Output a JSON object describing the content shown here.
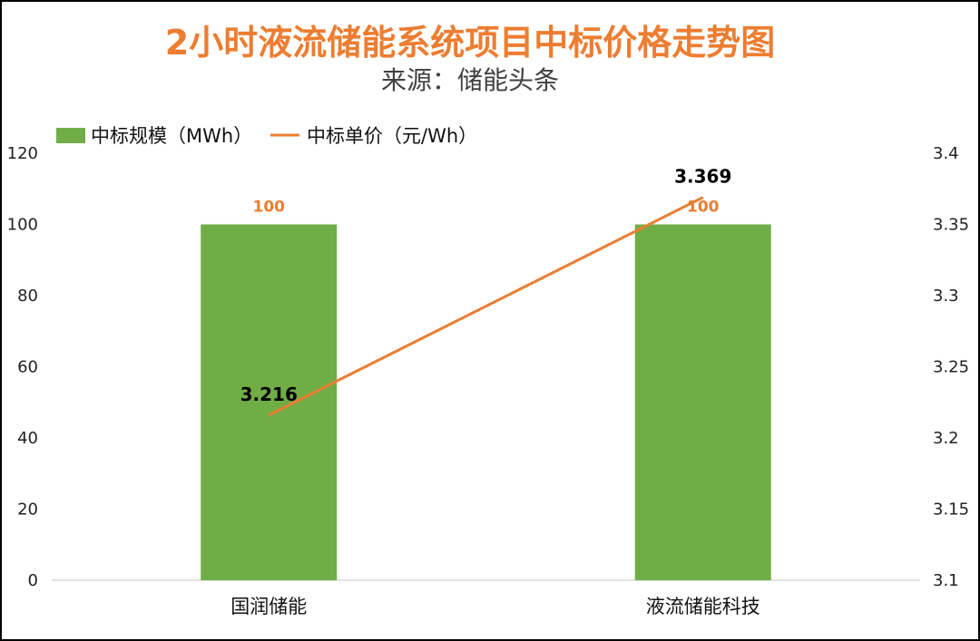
{
  "chart_data": {
    "type": "bar",
    "title": "2小时液流储能系统项目中标价格走势图",
    "subtitle": "来源：储能头条",
    "categories": [
      "国润储能",
      "液流储能科技"
    ],
    "series": [
      {
        "name": "中标规模（MWh）",
        "kind": "bar",
        "axis": "left",
        "values": [
          100,
          100
        ],
        "labels": [
          "100",
          "100"
        ]
      },
      {
        "name": "中标单价（元/Wh）",
        "kind": "line",
        "axis": "right",
        "values": [
          3.216,
          3.369
        ],
        "labels": [
          "3.216",
          "3.369"
        ]
      }
    ],
    "y_left": {
      "range": [
        0,
        120
      ],
      "ticks": [
        "0",
        "20",
        "40",
        "60",
        "80",
        "100",
        "120"
      ]
    },
    "y_right": {
      "range": [
        3.1,
        3.4
      ],
      "ticks": [
        "3.1",
        "3.15",
        "3.2",
        "3.25",
        "3.3",
        "3.35",
        "3.4"
      ]
    },
    "legend_position": "top-left",
    "grid": false
  },
  "colors": {
    "title": "#ED7D31",
    "bar": "#70AD47",
    "line": "#ED7D31",
    "bar_label": "#ED7D31",
    "axis_line": "#D9D9D9"
  }
}
